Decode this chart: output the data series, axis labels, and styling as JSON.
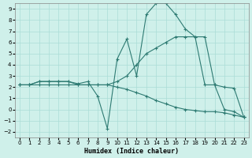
{
  "background_color": "#cff0ea",
  "line_color": "#2d7a72",
  "xlabel": "Humidex (Indice chaleur)",
  "xlim": [
    -0.5,
    23.5
  ],
  "ylim": [
    -2.5,
    9.5
  ],
  "xticks": [
    0,
    1,
    2,
    3,
    4,
    5,
    6,
    7,
    8,
    9,
    10,
    11,
    12,
    13,
    14,
    15,
    16,
    17,
    18,
    19,
    20,
    21,
    22,
    23
  ],
  "yticks": [
    -2,
    -1,
    0,
    1,
    2,
    3,
    4,
    5,
    6,
    7,
    8,
    9
  ],
  "line1_x": [
    0,
    1,
    2,
    3,
    4,
    5,
    6,
    7,
    8,
    9,
    10,
    11,
    12,
    13,
    14,
    15,
    16,
    17,
    18,
    19,
    20,
    21,
    22,
    23
  ],
  "line1_y": [
    2.2,
    2.2,
    2.5,
    2.5,
    2.5,
    2.5,
    2.3,
    2.5,
    1.2,
    -1.7,
    4.5,
    6.3,
    3.0,
    8.5,
    9.5,
    9.5,
    8.5,
    7.2,
    6.5,
    2.2,
    2.2,
    0.0,
    -0.2,
    -0.7
  ],
  "line2_x": [
    0,
    1,
    2,
    3,
    4,
    5,
    6,
    7,
    8,
    9,
    10,
    11,
    12,
    13,
    14,
    15,
    16,
    17,
    18,
    19,
    20,
    21,
    22,
    23
  ],
  "line2_y": [
    2.2,
    2.2,
    2.5,
    2.5,
    2.5,
    2.5,
    2.2,
    2.2,
    2.2,
    2.2,
    2.5,
    3.0,
    4.0,
    5.0,
    5.5,
    6.0,
    6.5,
    6.5,
    6.5,
    6.5,
    2.2,
    2.0,
    1.9,
    -0.7
  ],
  "line3_x": [
    0,
    1,
    2,
    3,
    4,
    5,
    6,
    7,
    8,
    9,
    10,
    11,
    12,
    13,
    14,
    15,
    16,
    17,
    18,
    19,
    20,
    21,
    22,
    23
  ],
  "line3_y": [
    2.2,
    2.2,
    2.2,
    2.2,
    2.2,
    2.2,
    2.2,
    2.2,
    2.2,
    2.2,
    2.0,
    1.8,
    1.5,
    1.2,
    0.8,
    0.5,
    0.2,
    0.0,
    -0.1,
    -0.2,
    -0.2,
    -0.3,
    -0.5,
    -0.7
  ],
  "grid_color": "#aaddd6",
  "tick_fontsize": 5,
  "label_fontsize": 6,
  "linewidth": 0.8,
  "markersize": 2.5
}
